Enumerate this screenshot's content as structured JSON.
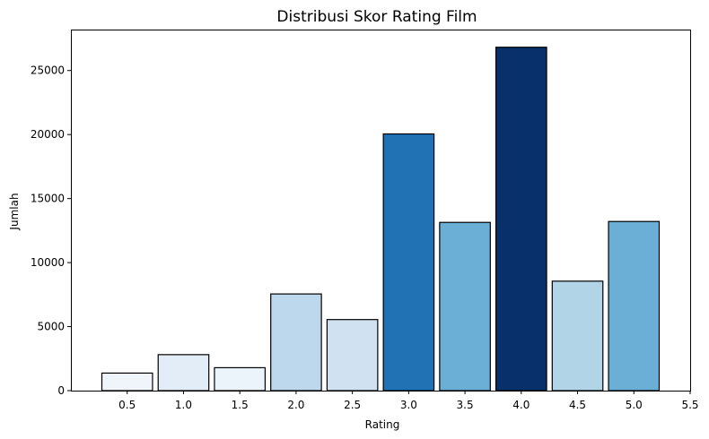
{
  "chart_data": {
    "type": "bar",
    "title": "Distribusi Skor Rating Film",
    "xlabel": "Rating",
    "ylabel": "Jumlah",
    "categories": [
      "0.5",
      "1.0",
      "1.5",
      "2.0",
      "2.5",
      "3.0",
      "3.5",
      "4.0",
      "4.5",
      "5.0"
    ],
    "x": [
      0.5,
      1.0,
      1.5,
      2.0,
      2.5,
      3.0,
      3.5,
      4.0,
      4.5,
      5.0
    ],
    "values": [
      1370,
      2810,
      1790,
      7550,
      5550,
      20050,
      13140,
      26820,
      8550,
      13210
    ],
    "bar_colors": [
      "#f0f5fc",
      "#e2edf8",
      "#ebf3fb",
      "#bdd7ec",
      "#d0e1f2",
      "#2171b5",
      "#6baed6",
      "#08306b",
      "#b1d4e7",
      "#6baed6"
    ],
    "bar_edge_color": "#000000",
    "xticks": [
      "0.5",
      "1.0",
      "1.5",
      "2.0",
      "2.5",
      "3.0",
      "3.5",
      "4.0",
      "4.5",
      "5.0",
      "5.5"
    ],
    "yticks": [
      "0",
      "5000",
      "10000",
      "15000",
      "20000",
      "25000"
    ],
    "xlim": [
      0.0,
      5.5
    ],
    "ylim": [
      0,
      28200
    ],
    "bar_width": 0.45,
    "grid": false
  }
}
